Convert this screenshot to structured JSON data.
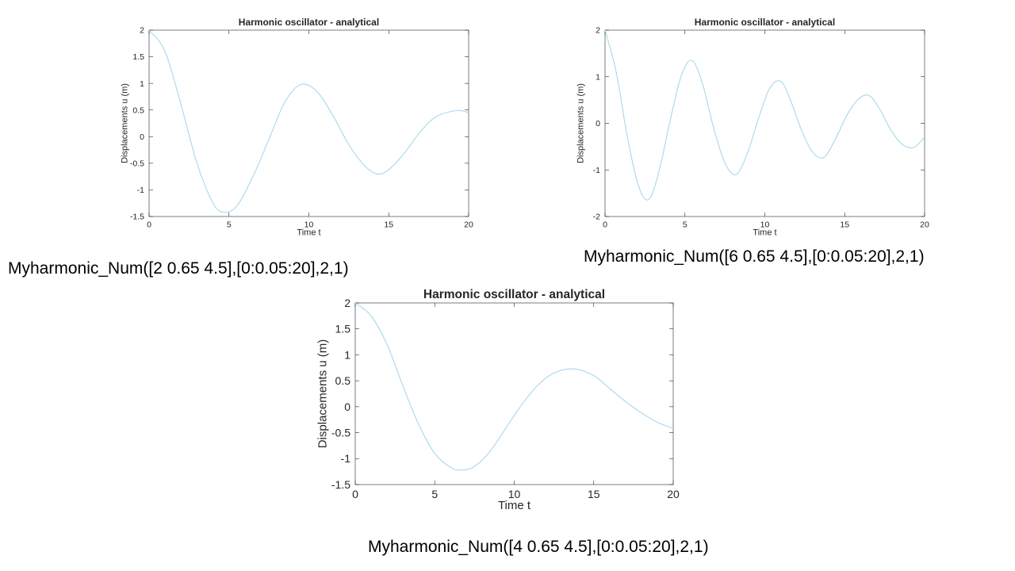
{
  "captions": [
    "Myharmonic_Num([2 0.65 4.5],[0:0.05:20],2,1)",
    "Myharmonic_Num([6 0.65 4.5],[0:0.05:20],2,1)",
    "Myharmonic_Num([4 0.65 4.5],[0:0.05:20],2,1)"
  ],
  "chart_data": [
    {
      "type": "line",
      "title": "Harmonic oscillator - analytical",
      "xlabel": "Time t",
      "ylabel": "Displacements u (m)",
      "xlim": [
        0,
        20
      ],
      "ylim": [
        -1.5,
        2
      ],
      "xticks": [
        0,
        5,
        10,
        15,
        20
      ],
      "yticks": [
        -1.5,
        -1,
        -0.5,
        0,
        0.5,
        1,
        1.5,
        2
      ],
      "line_color": "#a8d8ea",
      "series": [
        {
          "x": [
            0,
            1,
            2,
            3,
            4,
            4.7,
            5.5,
            6.5,
            7.5,
            8.5,
            9.5,
            10.5,
            11.5,
            12.5,
            13.5,
            14.3,
            15,
            16,
            17,
            18,
            19.3,
            20
          ],
          "y": [
            2,
            1.6,
            0.6,
            -0.5,
            -1.25,
            -1.42,
            -1.3,
            -0.75,
            -0.05,
            0.65,
            0.98,
            0.85,
            0.4,
            -0.15,
            -0.55,
            -0.7,
            -0.62,
            -0.3,
            0.1,
            0.38,
            0.49,
            0.45
          ]
        }
      ]
    },
    {
      "type": "line",
      "title": "Harmonic oscillator - analytical",
      "xlabel": "Time t",
      "ylabel": "Displacements u (m)",
      "xlim": [
        0,
        20
      ],
      "ylim": [
        -2,
        2
      ],
      "xticks": [
        0,
        5,
        10,
        15,
        20
      ],
      "yticks": [
        -2,
        -1,
        0,
        1,
        2
      ],
      "line_color": "#a8d8ea",
      "series": [
        {
          "x": [
            0,
            0.7,
            1.4,
            2.1,
            2.75,
            3.4,
            4.1,
            4.8,
            5.45,
            6.1,
            6.8,
            7.5,
            8.2,
            8.9,
            9.6,
            10.3,
            11,
            11.6,
            12.3,
            13,
            13.7,
            14.4,
            15.1,
            15.8,
            16.5,
            17.2,
            17.9,
            18.6,
            19.3,
            20
          ],
          "y": [
            2,
            1.1,
            -0.3,
            -1.35,
            -1.63,
            -1.0,
            0.1,
            1.05,
            1.35,
            0.85,
            -0.1,
            -0.85,
            -1.1,
            -0.65,
            0.1,
            0.75,
            0.9,
            0.5,
            -0.15,
            -0.62,
            -0.73,
            -0.35,
            0.15,
            0.5,
            0.6,
            0.3,
            -0.15,
            -0.45,
            -0.52,
            -0.3
          ]
        }
      ]
    },
    {
      "type": "line",
      "title": "Harmonic oscillator - analytical",
      "xlabel": "Time t",
      "ylabel": "Displacements u (m)",
      "xlim": [
        0,
        20
      ],
      "ylim": [
        -1.5,
        2
      ],
      "xticks": [
        0,
        5,
        10,
        15,
        20
      ],
      "yticks": [
        -1.5,
        -1,
        -0.5,
        0,
        0.5,
        1,
        1.5,
        2
      ],
      "line_color": "#a8d8ea",
      "series": [
        {
          "x": [
            0,
            1,
            2,
            3,
            4,
            5,
            6,
            6.7,
            7.5,
            8.5,
            9.5,
            10.5,
            11.5,
            12.5,
            13.7,
            15,
            16,
            17,
            18,
            19,
            20
          ],
          "y": [
            2,
            1.75,
            1.2,
            0.4,
            -0.35,
            -0.9,
            -1.17,
            -1.22,
            -1.15,
            -0.85,
            -0.4,
            0.05,
            0.42,
            0.65,
            0.73,
            0.6,
            0.35,
            0.1,
            -0.12,
            -0.3,
            -0.42
          ]
        }
      ]
    }
  ]
}
